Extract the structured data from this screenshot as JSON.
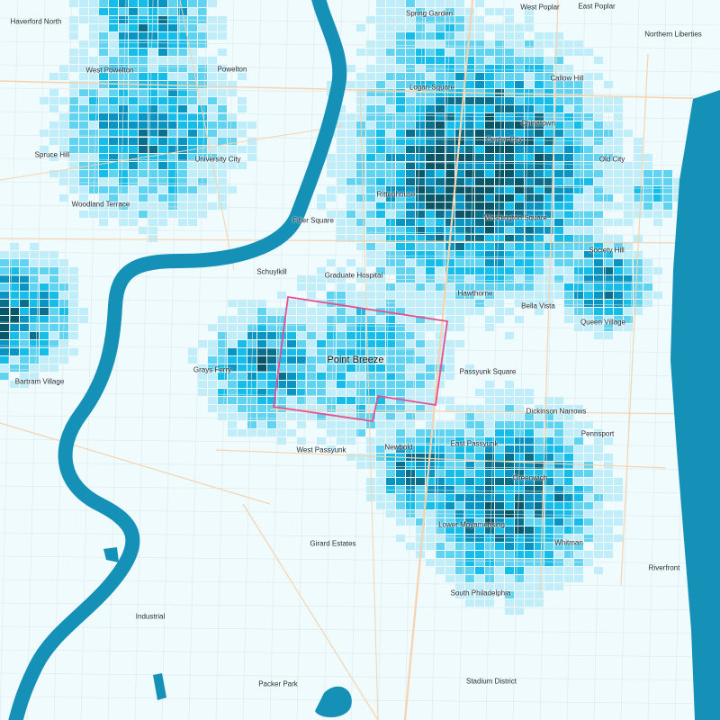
{
  "map": {
    "colors": {
      "background": "#effbfd",
      "water": "#1590b6",
      "road_major": "#f6d3b0",
      "road_minor": "#dfe8ea",
      "choropleth": [
        "#bfeefa",
        "#5fd3f0",
        "#16bde8",
        "#0a94c2",
        "#0b6f8a",
        "#0a5566"
      ],
      "highlight_outline": "#e6508f"
    },
    "highlighted_neighborhood": "Point Breeze",
    "neighborhoods": [
      "Haverford North",
      "West Powelton",
      "Powelton",
      "Spring Garden",
      "West Poplar",
      "East Poplar",
      "Northern Liberties",
      "Callow Hill",
      "Logan Square",
      "Chinatown",
      "Center City",
      "Old City",
      "Spruce Hill",
      "University City",
      "Rittenhouse",
      "Washington Square",
      "Woodland Terrace",
      "Fitler Square",
      "Society Hill",
      "Schuylkill",
      "Graduate Hospital",
      "Hawthorne",
      "Bella Vista",
      "Queen Village",
      "Grays Ferry",
      "Passyunk Square",
      "Bartram Village",
      "Dickinson Narrows",
      "Pennsport",
      "West Passyunk",
      "Newbold",
      "East Passyunk",
      "Greenwich",
      "Lower Moyamensing",
      "Whitman",
      "Girard Estates",
      "Riverfront",
      "South Philadelphia",
      "Industrial",
      "Packer Park",
      "Stadium District"
    ]
  }
}
